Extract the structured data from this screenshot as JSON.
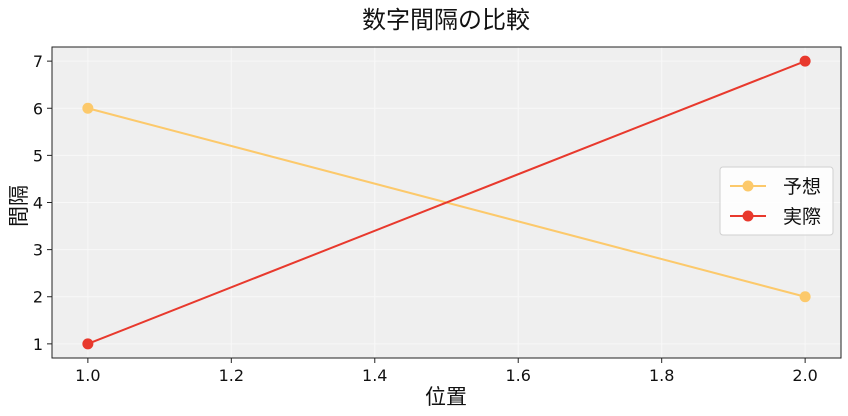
{
  "chart_data": {
    "type": "line",
    "title": "数字間隔の比較",
    "xlabel": "位置",
    "ylabel": "間隔",
    "xlim": [
      0.95,
      2.05
    ],
    "ylim": [
      0.7,
      7.3
    ],
    "xticks": [
      1.0,
      1.2,
      1.4,
      1.6,
      1.8,
      2.0
    ],
    "xtick_labels": [
      "1.0",
      "1.2",
      "1.4",
      "1.6",
      "1.8",
      "2.0"
    ],
    "yticks": [
      1,
      2,
      3,
      4,
      5,
      6,
      7
    ],
    "ytick_labels": [
      "1",
      "2",
      "3",
      "4",
      "5",
      "6",
      "7"
    ],
    "grid": true,
    "background": "#efefef",
    "legend_position": "center-right",
    "x": [
      1.0,
      2.0
    ],
    "series": [
      {
        "name": "予想",
        "values": [
          6,
          2
        ],
        "color": "#fcc96b"
      },
      {
        "name": "実際",
        "values": [
          1,
          7
        ],
        "color": "#e8392d"
      }
    ]
  }
}
